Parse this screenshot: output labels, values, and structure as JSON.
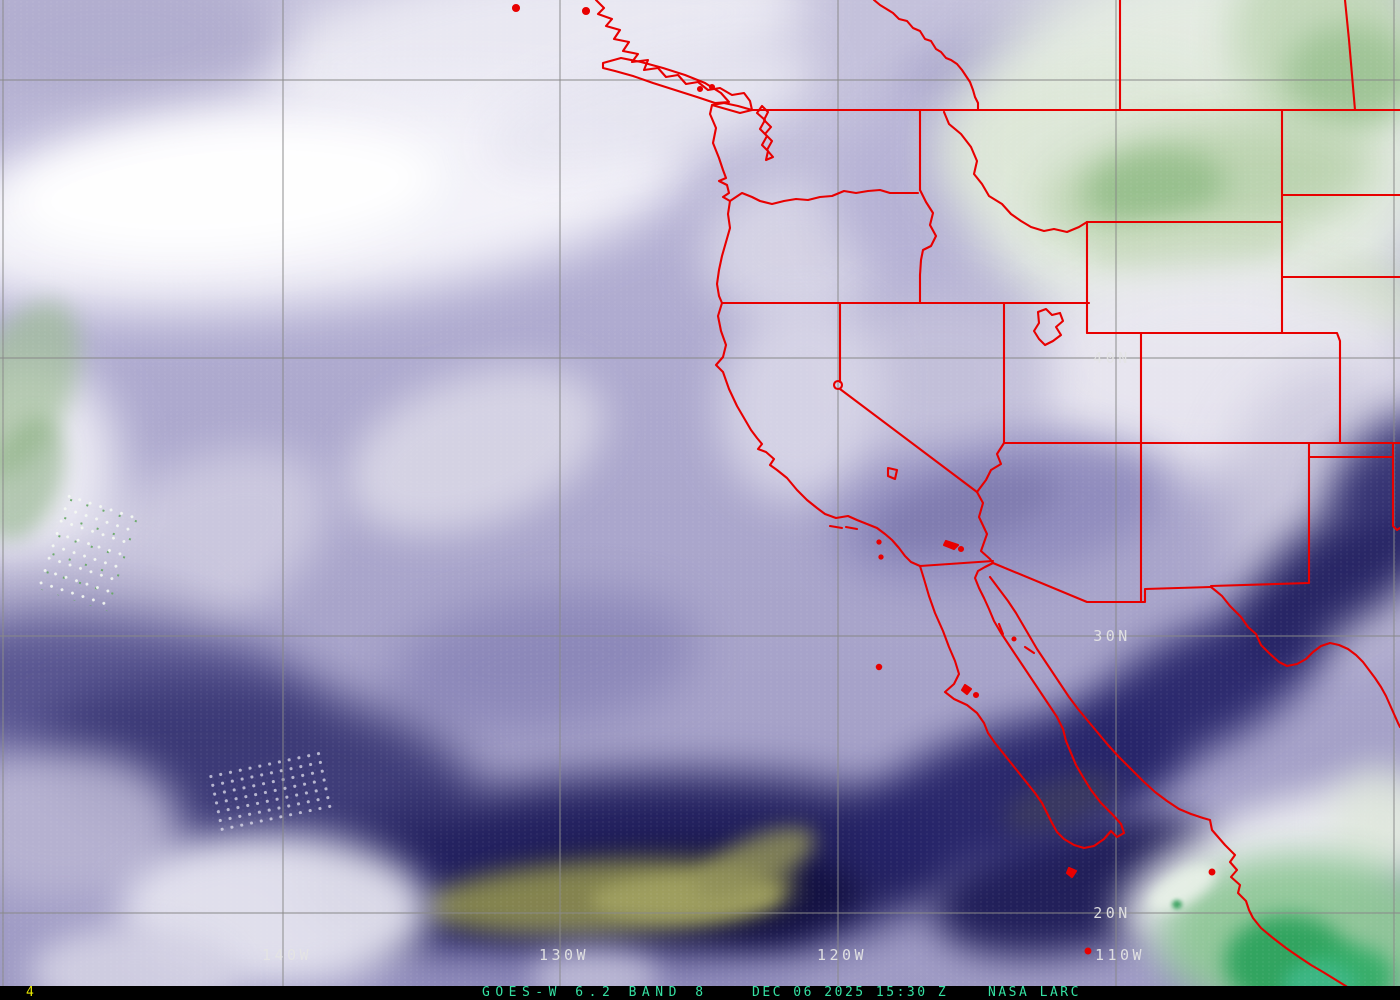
{
  "map": {
    "latitude_labels": [
      "40N",
      "30N",
      "20N"
    ],
    "longitude_labels": [
      "140W",
      "130W",
      "120W",
      "110W"
    ]
  },
  "status_bar": {
    "frame_number": "4",
    "satellite_product": "GOES-W 6.2 BAND 8",
    "timestamp": "DEC 06 2025 15:30 Z",
    "credit": "NASA LARC"
  },
  "colors": {
    "boundary_red": "#e80000",
    "gridline_gray": "#8a8a8a",
    "label_gray": "#e4e4e4",
    "status_text_green": "#35e0a2",
    "frame_number_yellow": "#e6e600",
    "status_bar_background": "#000000"
  }
}
